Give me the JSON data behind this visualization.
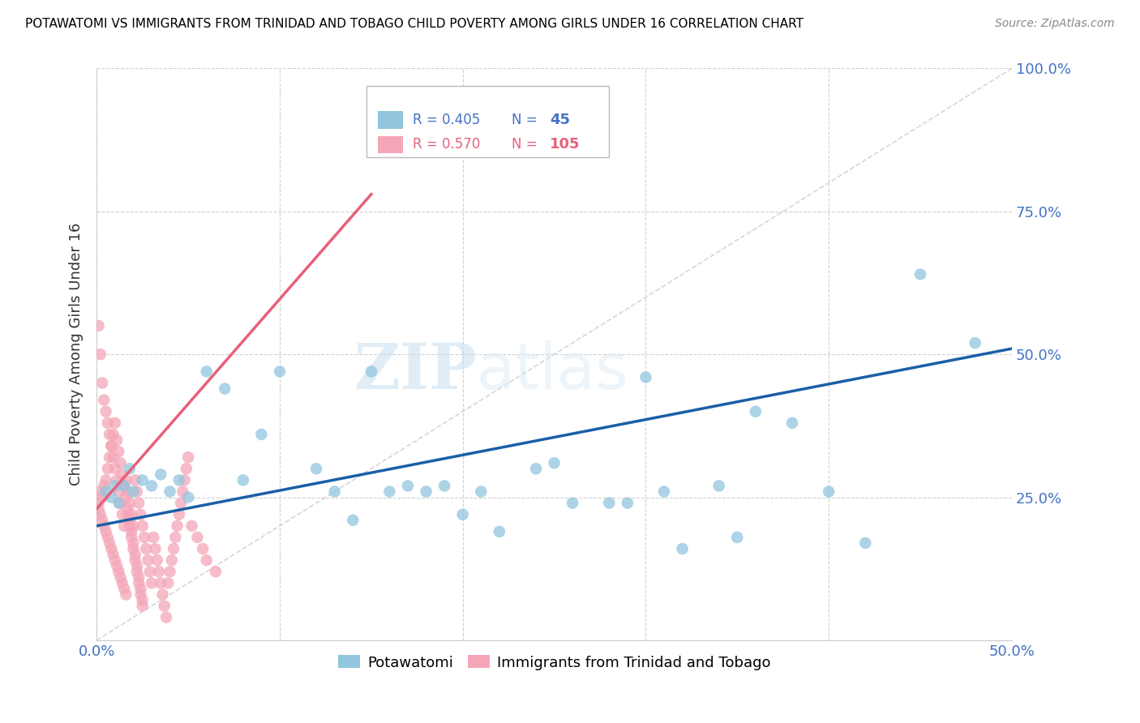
{
  "title": "POTAWATOMI VS IMMIGRANTS FROM TRINIDAD AND TOBAGO CHILD POVERTY AMONG GIRLS UNDER 16 CORRELATION CHART",
  "source": "Source: ZipAtlas.com",
  "ylabel": "Child Poverty Among Girls Under 16",
  "xlim": [
    0.0,
    0.5
  ],
  "ylim": [
    0.0,
    1.0
  ],
  "series1_color": "#92c5de",
  "series2_color": "#f4a6b8",
  "line1_color": "#1a5fa8",
  "line2_color": "#e8607a",
  "R1": 0.405,
  "N1": 45,
  "R2": 0.57,
  "N2": 105,
  "watermark_zip": "ZIP",
  "watermark_atlas": "atlas",
  "legend_label1": "Potawatomi",
  "legend_label2": "Immigrants from Trinidad and Tobago",
  "series1_x": [
    0.005,
    0.008,
    0.01,
    0.012,
    0.015,
    0.018,
    0.02,
    0.025,
    0.03,
    0.035,
    0.04,
    0.045,
    0.05,
    0.06,
    0.07,
    0.08,
    0.09,
    0.1,
    0.12,
    0.14,
    0.15,
    0.16,
    0.18,
    0.2,
    0.22,
    0.25,
    0.28,
    0.3,
    0.32,
    0.35,
    0.38,
    0.4,
    0.42,
    0.45,
    0.48,
    0.13,
    0.17,
    0.19,
    0.21,
    0.24,
    0.26,
    0.29,
    0.31,
    0.34,
    0.36
  ],
  "series1_y": [
    0.26,
    0.25,
    0.27,
    0.24,
    0.27,
    0.3,
    0.26,
    0.28,
    0.27,
    0.29,
    0.26,
    0.28,
    0.25,
    0.47,
    0.44,
    0.28,
    0.36,
    0.47,
    0.3,
    0.21,
    0.47,
    0.26,
    0.26,
    0.22,
    0.19,
    0.31,
    0.24,
    0.46,
    0.16,
    0.18,
    0.38,
    0.26,
    0.17,
    0.64,
    0.52,
    0.26,
    0.27,
    0.27,
    0.26,
    0.3,
    0.24,
    0.24,
    0.26,
    0.27,
    0.4
  ],
  "series2_x": [
    0.001,
    0.001,
    0.002,
    0.002,
    0.003,
    0.003,
    0.004,
    0.004,
    0.005,
    0.005,
    0.006,
    0.006,
    0.007,
    0.007,
    0.008,
    0.008,
    0.009,
    0.009,
    0.01,
    0.01,
    0.011,
    0.011,
    0.012,
    0.012,
    0.013,
    0.013,
    0.014,
    0.014,
    0.015,
    0.015,
    0.016,
    0.016,
    0.017,
    0.017,
    0.018,
    0.018,
    0.019,
    0.019,
    0.02,
    0.02,
    0.021,
    0.021,
    0.022,
    0.022,
    0.023,
    0.023,
    0.024,
    0.024,
    0.025,
    0.025,
    0.001,
    0.002,
    0.003,
    0.004,
    0.005,
    0.006,
    0.007,
    0.008,
    0.009,
    0.01,
    0.011,
    0.012,
    0.013,
    0.014,
    0.015,
    0.016,
    0.017,
    0.018,
    0.019,
    0.02,
    0.021,
    0.022,
    0.023,
    0.024,
    0.025,
    0.026,
    0.027,
    0.028,
    0.029,
    0.03,
    0.031,
    0.032,
    0.033,
    0.034,
    0.035,
    0.036,
    0.037,
    0.038,
    0.039,
    0.04,
    0.041,
    0.042,
    0.043,
    0.044,
    0.045,
    0.046,
    0.047,
    0.048,
    0.049,
    0.05,
    0.052,
    0.055,
    0.058,
    0.06,
    0.065
  ],
  "series2_y": [
    0.24,
    0.23,
    0.26,
    0.22,
    0.25,
    0.21,
    0.27,
    0.2,
    0.28,
    0.19,
    0.3,
    0.18,
    0.32,
    0.17,
    0.34,
    0.16,
    0.36,
    0.15,
    0.38,
    0.14,
    0.35,
    0.13,
    0.33,
    0.12,
    0.31,
    0.11,
    0.29,
    0.1,
    0.27,
    0.09,
    0.25,
    0.08,
    0.23,
    0.22,
    0.21,
    0.2,
    0.19,
    0.18,
    0.17,
    0.16,
    0.15,
    0.14,
    0.13,
    0.12,
    0.11,
    0.1,
    0.09,
    0.08,
    0.07,
    0.06,
    0.55,
    0.5,
    0.45,
    0.42,
    0.4,
    0.38,
    0.36,
    0.34,
    0.32,
    0.3,
    0.28,
    0.26,
    0.24,
    0.22,
    0.2,
    0.28,
    0.26,
    0.24,
    0.22,
    0.2,
    0.28,
    0.26,
    0.24,
    0.22,
    0.2,
    0.18,
    0.16,
    0.14,
    0.12,
    0.1,
    0.18,
    0.16,
    0.14,
    0.12,
    0.1,
    0.08,
    0.06,
    0.04,
    0.1,
    0.12,
    0.14,
    0.16,
    0.18,
    0.2,
    0.22,
    0.24,
    0.26,
    0.28,
    0.3,
    0.32,
    0.2,
    0.18,
    0.16,
    0.14,
    0.12
  ],
  "line1_x0": 0.0,
  "line1_y0": 0.2,
  "line1_x1": 0.5,
  "line1_y1": 0.51,
  "line2_x0": 0.0,
  "line2_y0": 0.23,
  "line2_x1": 0.15,
  "line2_y1": 0.78
}
